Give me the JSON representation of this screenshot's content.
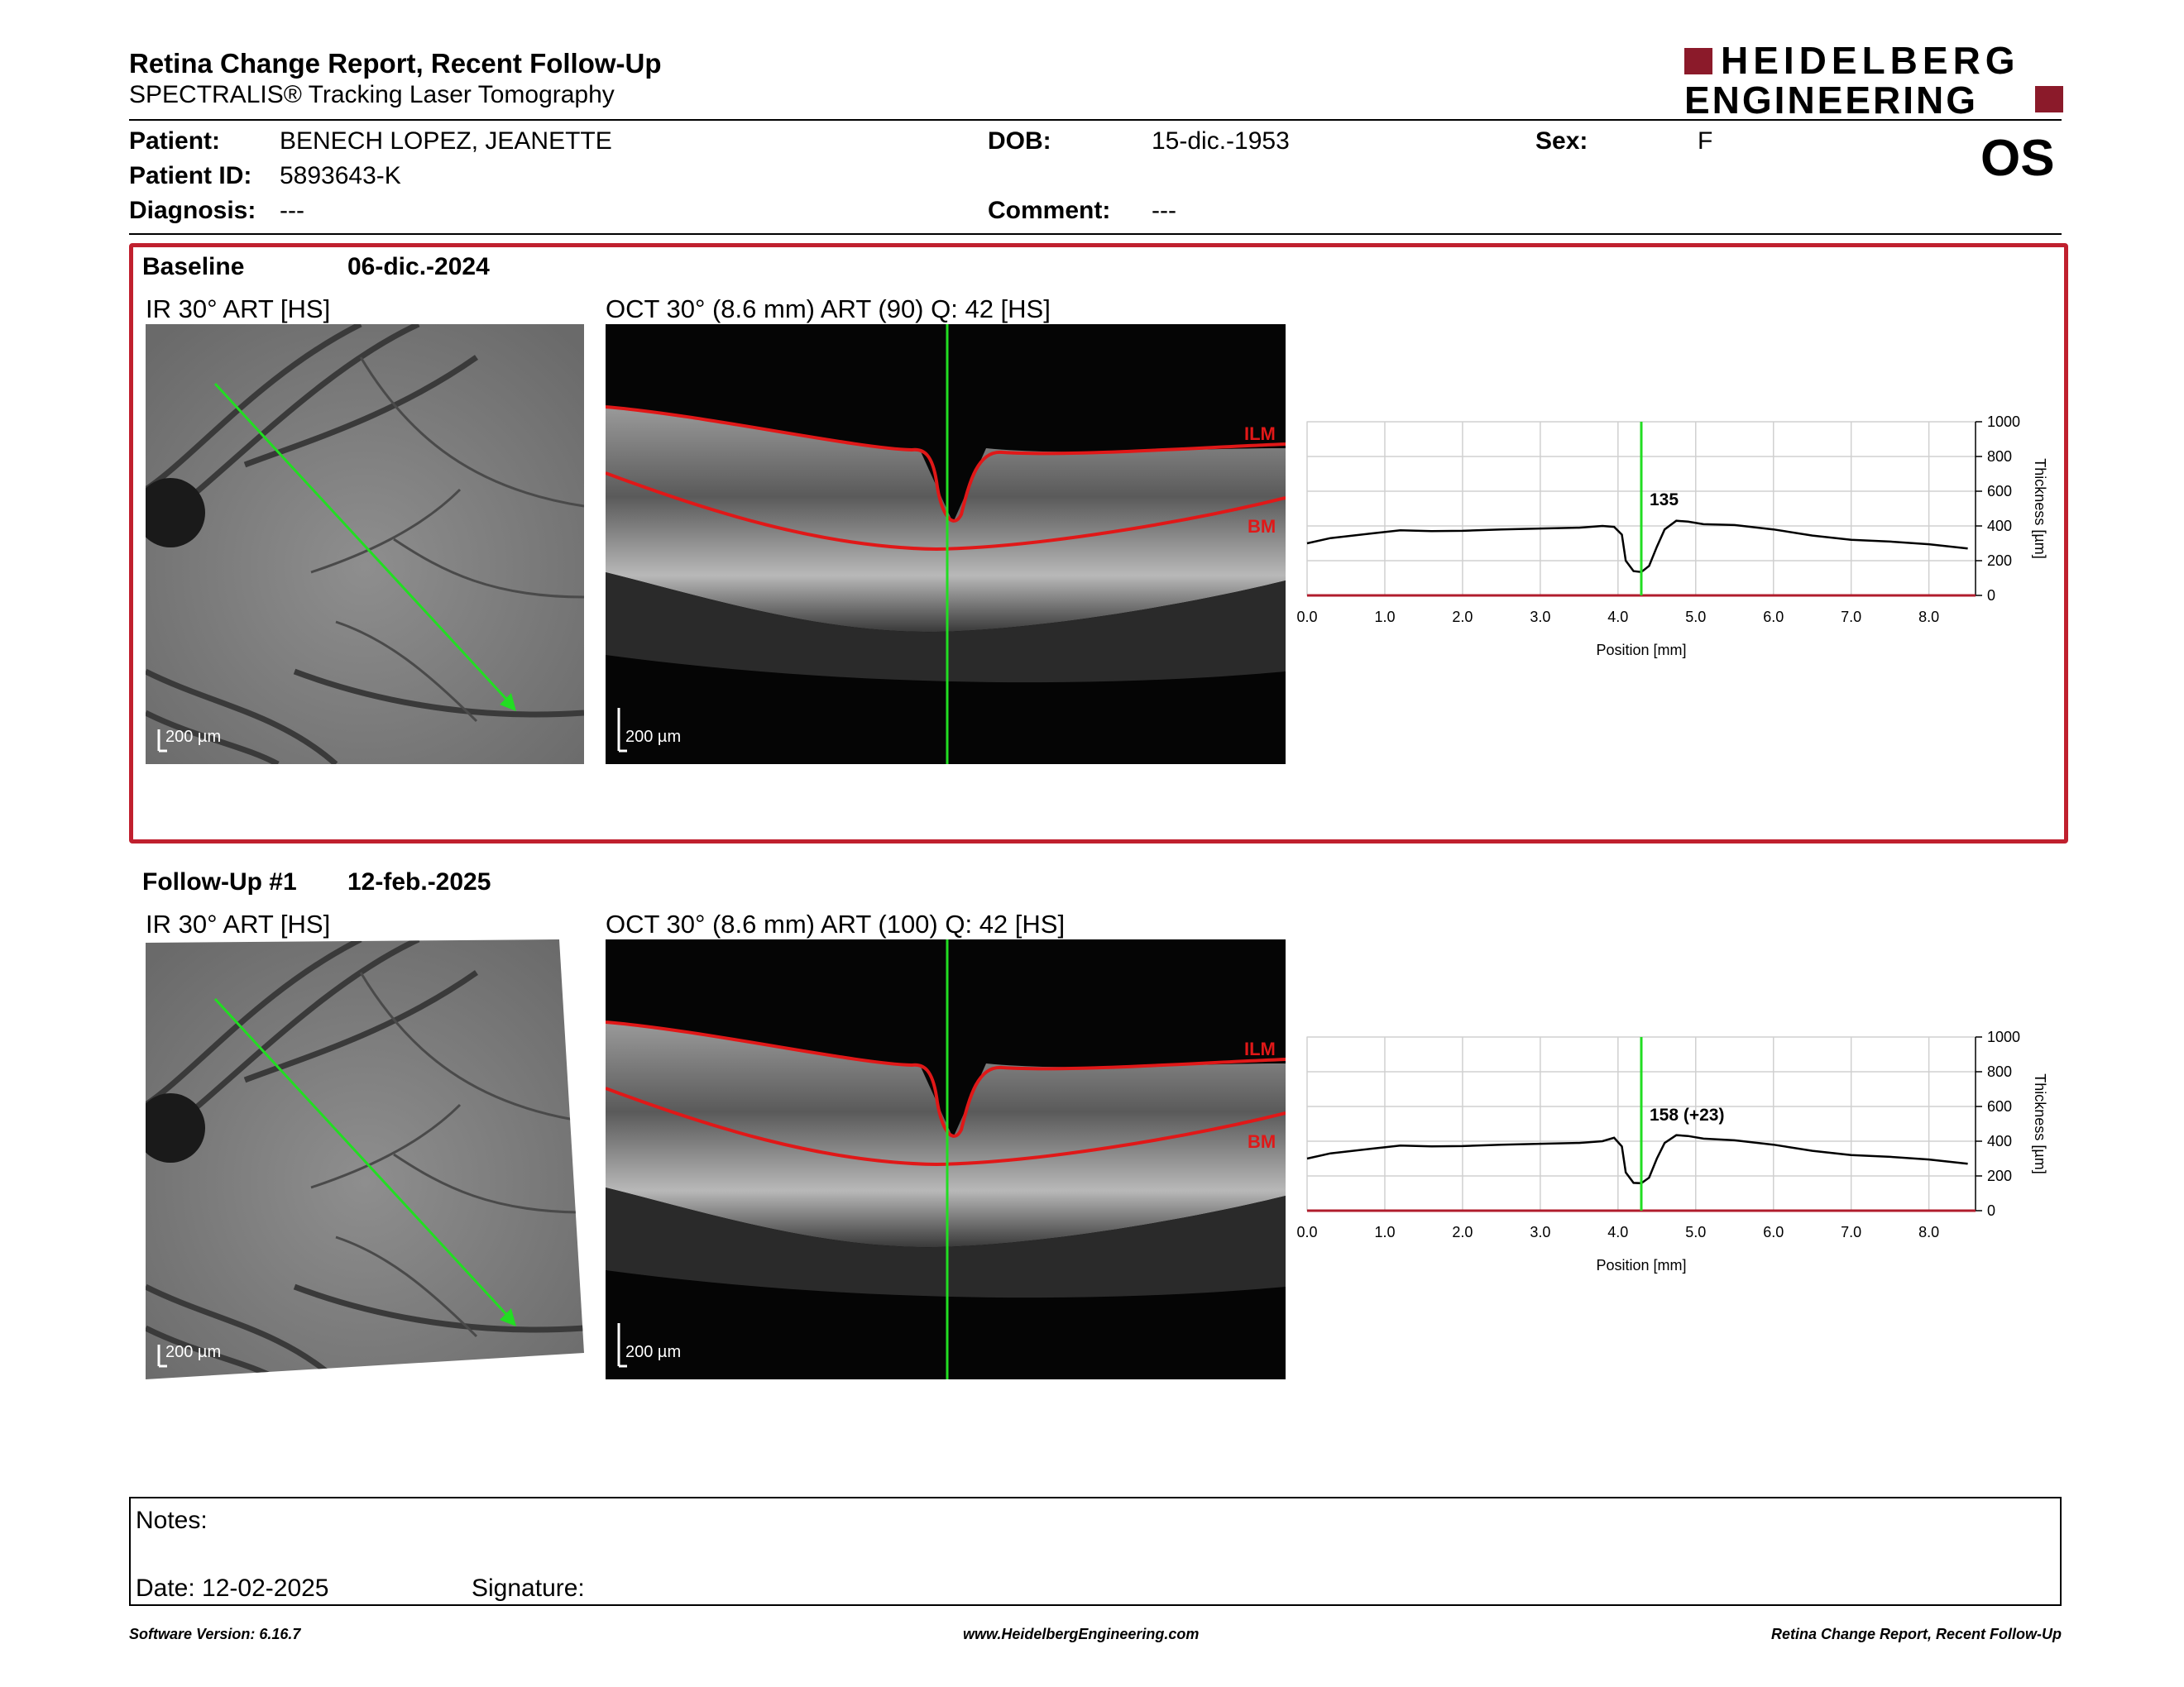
{
  "header": {
    "title": "Retina Change Report, Recent Follow-Up",
    "subtitle": "SPECTRALIS® Tracking Laser Tomography",
    "logo_line1": "HEIDELBERG",
    "logo_line2": "ENGINEERING",
    "eye": "OS"
  },
  "patient": {
    "patient_label": "Patient:",
    "patient_value": "BENECH LOPEZ, JEANETTE",
    "id_label": "Patient ID:",
    "id_value": "5893643-K",
    "diagnosis_label": "Diagnosis:",
    "diagnosis_value": "---",
    "dob_label": "DOB:",
    "dob_value": "15-dic.-1953",
    "comment_label": "Comment:",
    "comment_value": "---",
    "sex_label": "Sex:",
    "sex_value": "F"
  },
  "baseline": {
    "label": "Baseline",
    "date": "06-dic.-2024",
    "ir_caption": "IR 30° ART [HS]",
    "oct_caption": "OCT 30° (8.6 mm) ART (90) Q: 42 [HS]",
    "ir_scale": "200 µm",
    "oct_scale": "200 µm",
    "ilm_label": "ILM",
    "bm_label": "BM"
  },
  "followup": {
    "label": "Follow-Up #1",
    "date": "12-feb.-2025",
    "ir_caption": "IR 30° ART [HS]",
    "oct_caption": "OCT 30° (8.6 mm) ART (100) Q: 42 [HS]",
    "ir_scale": "200 µm",
    "oct_scale": "200 µm",
    "ilm_label": "ILM",
    "bm_label": "BM"
  },
  "chart_data": [
    {
      "type": "line",
      "xlabel": "Position [mm]",
      "ylabel": "Thickness [µm]",
      "xlim": [
        0,
        8.6
      ],
      "ylim": [
        0,
        1000
      ],
      "xticks": [
        "0.0",
        "1.0",
        "2.0",
        "3.0",
        "4.0",
        "5.0",
        "6.0",
        "7.0",
        "8.0"
      ],
      "yticks": [
        "0",
        "200",
        "400",
        "600",
        "800",
        "1000"
      ],
      "grid": true,
      "cursor_x": 4.3,
      "annotation": "135",
      "series": [
        {
          "x": [
            0,
            0.3,
            0.8,
            1.2,
            1.6,
            2.0,
            2.5,
            3.0,
            3.5,
            3.8,
            3.95,
            4.05,
            4.1,
            4.2,
            4.3,
            4.4,
            4.5,
            4.6,
            4.75,
            4.9,
            5.1,
            5.5,
            6.0,
            6.5,
            7.0,
            7.5,
            8.0,
            8.5
          ],
          "y": [
            300,
            330,
            355,
            375,
            370,
            372,
            380,
            385,
            390,
            400,
            395,
            350,
            200,
            140,
            135,
            170,
            280,
            380,
            430,
            425,
            410,
            405,
            380,
            345,
            320,
            310,
            295,
            270
          ]
        }
      ]
    },
    {
      "type": "line",
      "xlabel": "Position [mm]",
      "ylabel": "Thickness [µm]",
      "xlim": [
        0,
        8.6
      ],
      "ylim": [
        0,
        1000
      ],
      "xticks": [
        "0.0",
        "1.0",
        "2.0",
        "3.0",
        "4.0",
        "5.0",
        "6.0",
        "7.0",
        "8.0"
      ],
      "yticks": [
        "0",
        "200",
        "400",
        "600",
        "800",
        "1000"
      ],
      "grid": true,
      "cursor_x": 4.3,
      "annotation": "158 (+23)",
      "series": [
        {
          "x": [
            0,
            0.3,
            0.8,
            1.2,
            1.6,
            2.0,
            2.5,
            3.0,
            3.5,
            3.8,
            3.95,
            4.05,
            4.1,
            4.2,
            4.3,
            4.4,
            4.5,
            4.6,
            4.75,
            4.9,
            5.1,
            5.5,
            6.0,
            6.5,
            7.0,
            7.5,
            8.0,
            8.5
          ],
          "y": [
            300,
            330,
            355,
            375,
            370,
            372,
            380,
            385,
            390,
            400,
            420,
            370,
            220,
            160,
            158,
            190,
            300,
            390,
            435,
            430,
            415,
            405,
            380,
            345,
            320,
            310,
            295,
            270
          ]
        }
      ]
    }
  ],
  "notes": {
    "notes_label": "Notes:",
    "date_label": "Date: 12-02-2025",
    "signature_label": "Signature:"
  },
  "footer": {
    "left": "Software Version: 6.16.7",
    "center": "www.HeidelbergEngineering.com",
    "right": "Retina Change Report, Recent Follow-Up"
  }
}
